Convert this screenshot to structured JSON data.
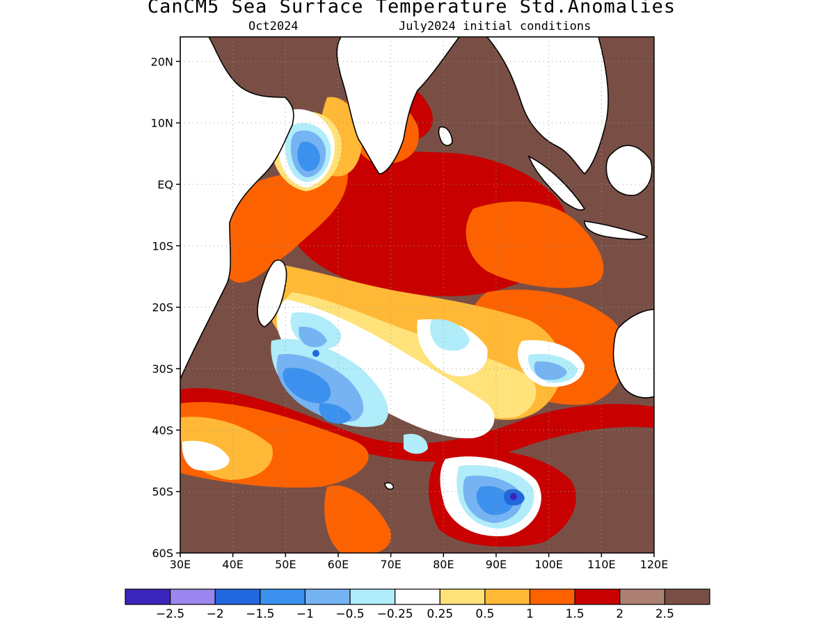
{
  "title": "CanCM5 Sea Surface Temperature Std.Anomalies",
  "subtitle_left": "Oct2024",
  "subtitle_right": "July2024 initial conditions",
  "map": {
    "lon_range": [
      30,
      120
    ],
    "lat_range": [
      -60,
      24
    ],
    "lat_ticks": [
      {
        "value": 20,
        "label": "20N"
      },
      {
        "value": 10,
        "label": "10N"
      },
      {
        "value": 0,
        "label": "EQ"
      },
      {
        "value": -10,
        "label": "10S"
      },
      {
        "value": -20,
        "label": "20S"
      },
      {
        "value": -30,
        "label": "30S"
      },
      {
        "value": -40,
        "label": "40S"
      },
      {
        "value": -50,
        "label": "50S"
      },
      {
        "value": -60,
        "label": "60S"
      }
    ],
    "lon_ticks": [
      {
        "value": 30,
        "label": "30E"
      },
      {
        "value": 40,
        "label": "40E"
      },
      {
        "value": 50,
        "label": "50E"
      },
      {
        "value": 60,
        "label": "60E"
      },
      {
        "value": 70,
        "label": "70E"
      },
      {
        "value": 80,
        "label": "80E"
      },
      {
        "value": 90,
        "label": "90E"
      },
      {
        "value": 100,
        "label": "100E"
      },
      {
        "value": 110,
        "label": "110E"
      },
      {
        "value": 120,
        "label": "120E"
      }
    ],
    "grid": true,
    "background_color": "#794f45"
  },
  "colorbar": {
    "colors": [
      "#3b26bb",
      "#9c86ef",
      "#2167de",
      "#3d91ee",
      "#75b3f3",
      "#b0ecf9",
      "#ffffff",
      "#ffe27a",
      "#ffb936",
      "#fd6200",
      "#c80000",
      "#ad8074",
      "#794f45"
    ],
    "labels": [
      "−2.5",
      "−2",
      "−1.5",
      "−1",
      "−0.5",
      "−0.25",
      "0.25",
      "0.5",
      "1",
      "1.5",
      "2",
      "2.5"
    ]
  }
}
